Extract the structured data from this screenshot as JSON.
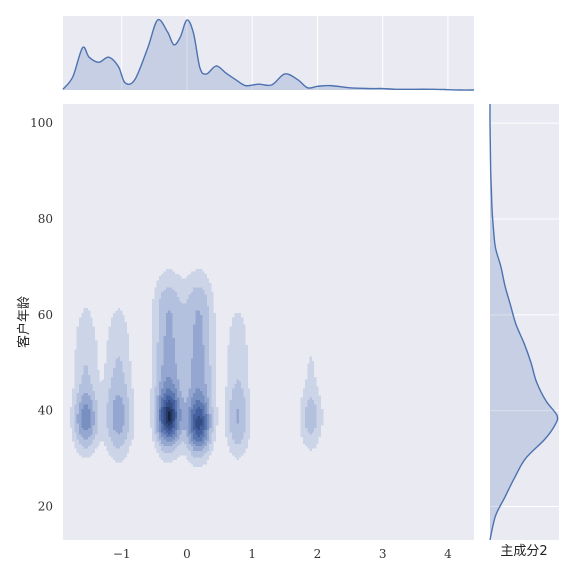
{
  "chart_data": {
    "type": "jointplot-kde",
    "title": "",
    "xlabel": "主成分2",
    "ylabel": "客户年龄",
    "xlim": [
      -1.9,
      4.4
    ],
    "ylim": [
      13,
      104
    ],
    "xticks": [
      -1,
      0,
      1,
      2,
      3,
      4
    ],
    "yticks": [
      20,
      40,
      60,
      80,
      100
    ],
    "xtick_labels": [
      "−1",
      "0",
      "1",
      "2",
      "3",
      "4"
    ],
    "ytick_labels": [
      "20",
      "40",
      "60",
      "80",
      "100"
    ],
    "grid": true,
    "colors": {
      "background": "#eaeaf2",
      "grid": "#ffffff",
      "line": "#4c72b0",
      "fill": "#4c72b0",
      "contour_levels": [
        "#ccd4e8",
        "#b3c0de",
        "#95a7d0",
        "#7890c0",
        "#5c77b0",
        "#44609e",
        "#344d85",
        "#253a66",
        "#17243f"
      ]
    },
    "marginal_x": {
      "x": [
        -1.9,
        -1.75,
        -1.6,
        -1.5,
        -1.35,
        -1.2,
        -1.05,
        -0.95,
        -0.8,
        -0.6,
        -0.45,
        -0.3,
        -0.2,
        -0.1,
        0.0,
        0.1,
        0.2,
        0.3,
        0.45,
        0.6,
        0.75,
        0.9,
        1.1,
        1.3,
        1.5,
        1.7,
        1.85,
        2.0,
        2.2,
        2.5,
        2.8,
        3.0,
        3.2,
        3.5,
        3.8,
        4.0,
        4.2,
        4.4
      ],
      "density": [
        0.01,
        0.18,
        0.58,
        0.45,
        0.38,
        0.45,
        0.32,
        0.1,
        0.14,
        0.58,
        0.96,
        0.8,
        0.62,
        0.73,
        0.96,
        0.78,
        0.3,
        0.22,
        0.33,
        0.23,
        0.14,
        0.06,
        0.08,
        0.07,
        0.22,
        0.14,
        0.03,
        0.05,
        0.06,
        0.03,
        0.02,
        0.02,
        0.01,
        0.01,
        0.01,
        0.005,
        0.0,
        0.0
      ]
    },
    "marginal_y": {
      "y": [
        13,
        18,
        22,
        26,
        30,
        34,
        37,
        39,
        42,
        46,
        50,
        54,
        58,
        62,
        66,
        70,
        74,
        78,
        82,
        86,
        90,
        95,
        100,
        104
      ],
      "density": [
        0.0,
        0.08,
        0.22,
        0.36,
        0.52,
        0.8,
        0.95,
        0.98,
        0.82,
        0.68,
        0.6,
        0.5,
        0.38,
        0.3,
        0.22,
        0.16,
        0.08,
        0.05,
        0.03,
        0.02,
        0.01,
        0.005,
        0.0,
        0.0
      ]
    },
    "kde_components": [
      {
        "x": -1.55,
        "y": 38,
        "sx": 0.12,
        "sy": 4,
        "w": 0.55
      },
      {
        "x": -1.55,
        "y": 50,
        "sx": 0.13,
        "sy": 9,
        "w": 0.22
      },
      {
        "x": -1.05,
        "y": 38,
        "sx": 0.14,
        "sy": 5,
        "w": 0.38
      },
      {
        "x": -1.05,
        "y": 50,
        "sx": 0.14,
        "sy": 9,
        "w": 0.22
      },
      {
        "x": -0.28,
        "y": 38.5,
        "sx": 0.12,
        "sy": 3.8,
        "w": 1.0
      },
      {
        "x": -0.28,
        "y": 48,
        "sx": 0.15,
        "sy": 9,
        "w": 0.45
      },
      {
        "x": -0.28,
        "y": 62,
        "sx": 0.16,
        "sy": 5,
        "w": 0.22
      },
      {
        "x": 0.18,
        "y": 37,
        "sx": 0.12,
        "sy": 3.8,
        "w": 0.85
      },
      {
        "x": 0.18,
        "y": 48,
        "sx": 0.15,
        "sy": 9,
        "w": 0.45
      },
      {
        "x": 0.18,
        "y": 62,
        "sx": 0.15,
        "sy": 5,
        "w": 0.22
      },
      {
        "x": 0.78,
        "y": 38,
        "sx": 0.12,
        "sy": 5,
        "w": 0.35
      },
      {
        "x": 0.78,
        "y": 52,
        "sx": 0.13,
        "sy": 8,
        "w": 0.18
      },
      {
        "x": 1.9,
        "y": 38.5,
        "sx": 0.12,
        "sy": 4.5,
        "w": 0.3
      },
      {
        "x": 1.9,
        "y": 50,
        "sx": 0.08,
        "sy": 5,
        "w": 0.1
      }
    ],
    "contour_thresholds": [
      0.08,
      0.18,
      0.3,
      0.42,
      0.55,
      0.68,
      0.8,
      0.9,
      0.98
    ]
  }
}
